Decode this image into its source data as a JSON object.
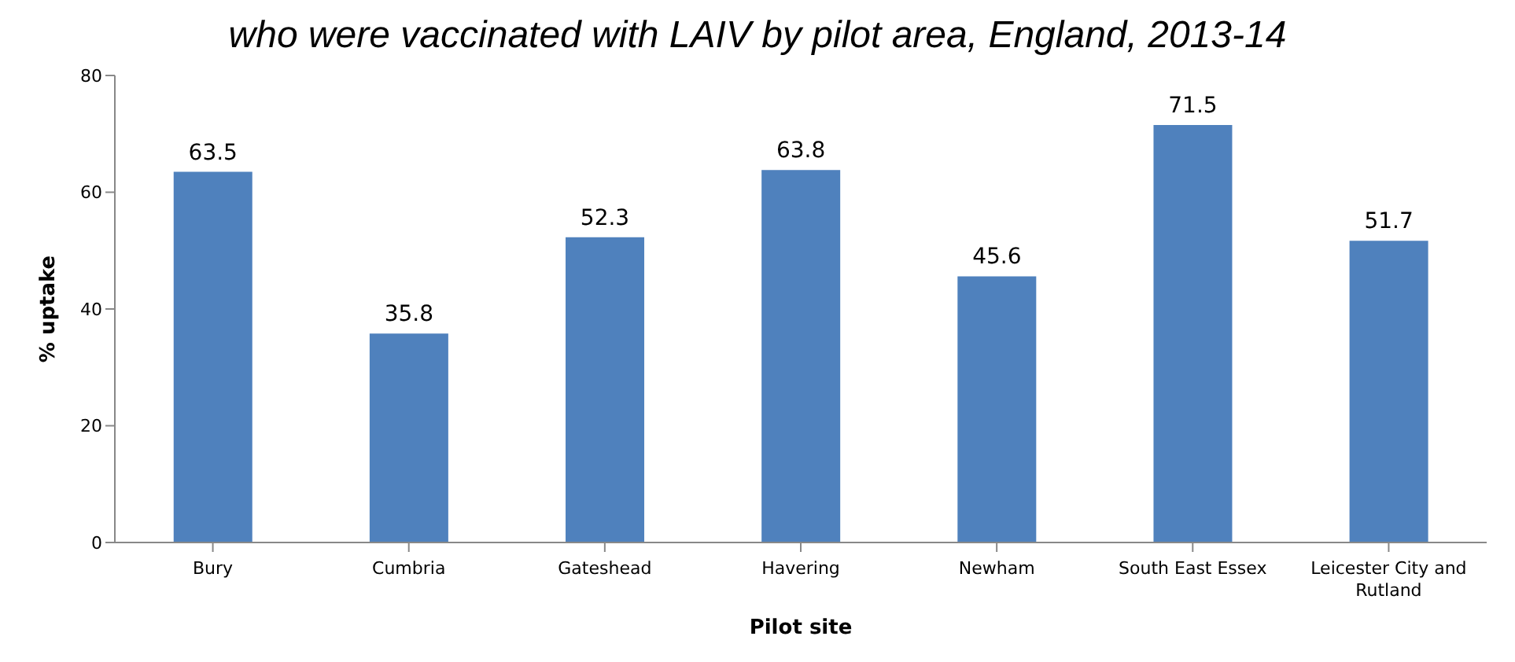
{
  "chart_data": {
    "type": "bar",
    "title": "who were vaccinated with LAIV by pilot area, England, 2013-14",
    "xlabel": "Pilot site",
    "ylabel": "% uptake",
    "categories": [
      "Bury",
      "Cumbria",
      "Gateshead",
      "Havering",
      "Newham",
      "South East Essex",
      "Leicester City and Rutland"
    ],
    "values": [
      63.5,
      35.8,
      52.3,
      63.8,
      45.6,
      71.5,
      51.7
    ],
    "color": "#4f81bd",
    "ylim": [
      0,
      80
    ],
    "yticks": [
      0,
      20,
      40,
      60,
      80
    ],
    "grid": false,
    "data_labels": true,
    "legend": false
  }
}
